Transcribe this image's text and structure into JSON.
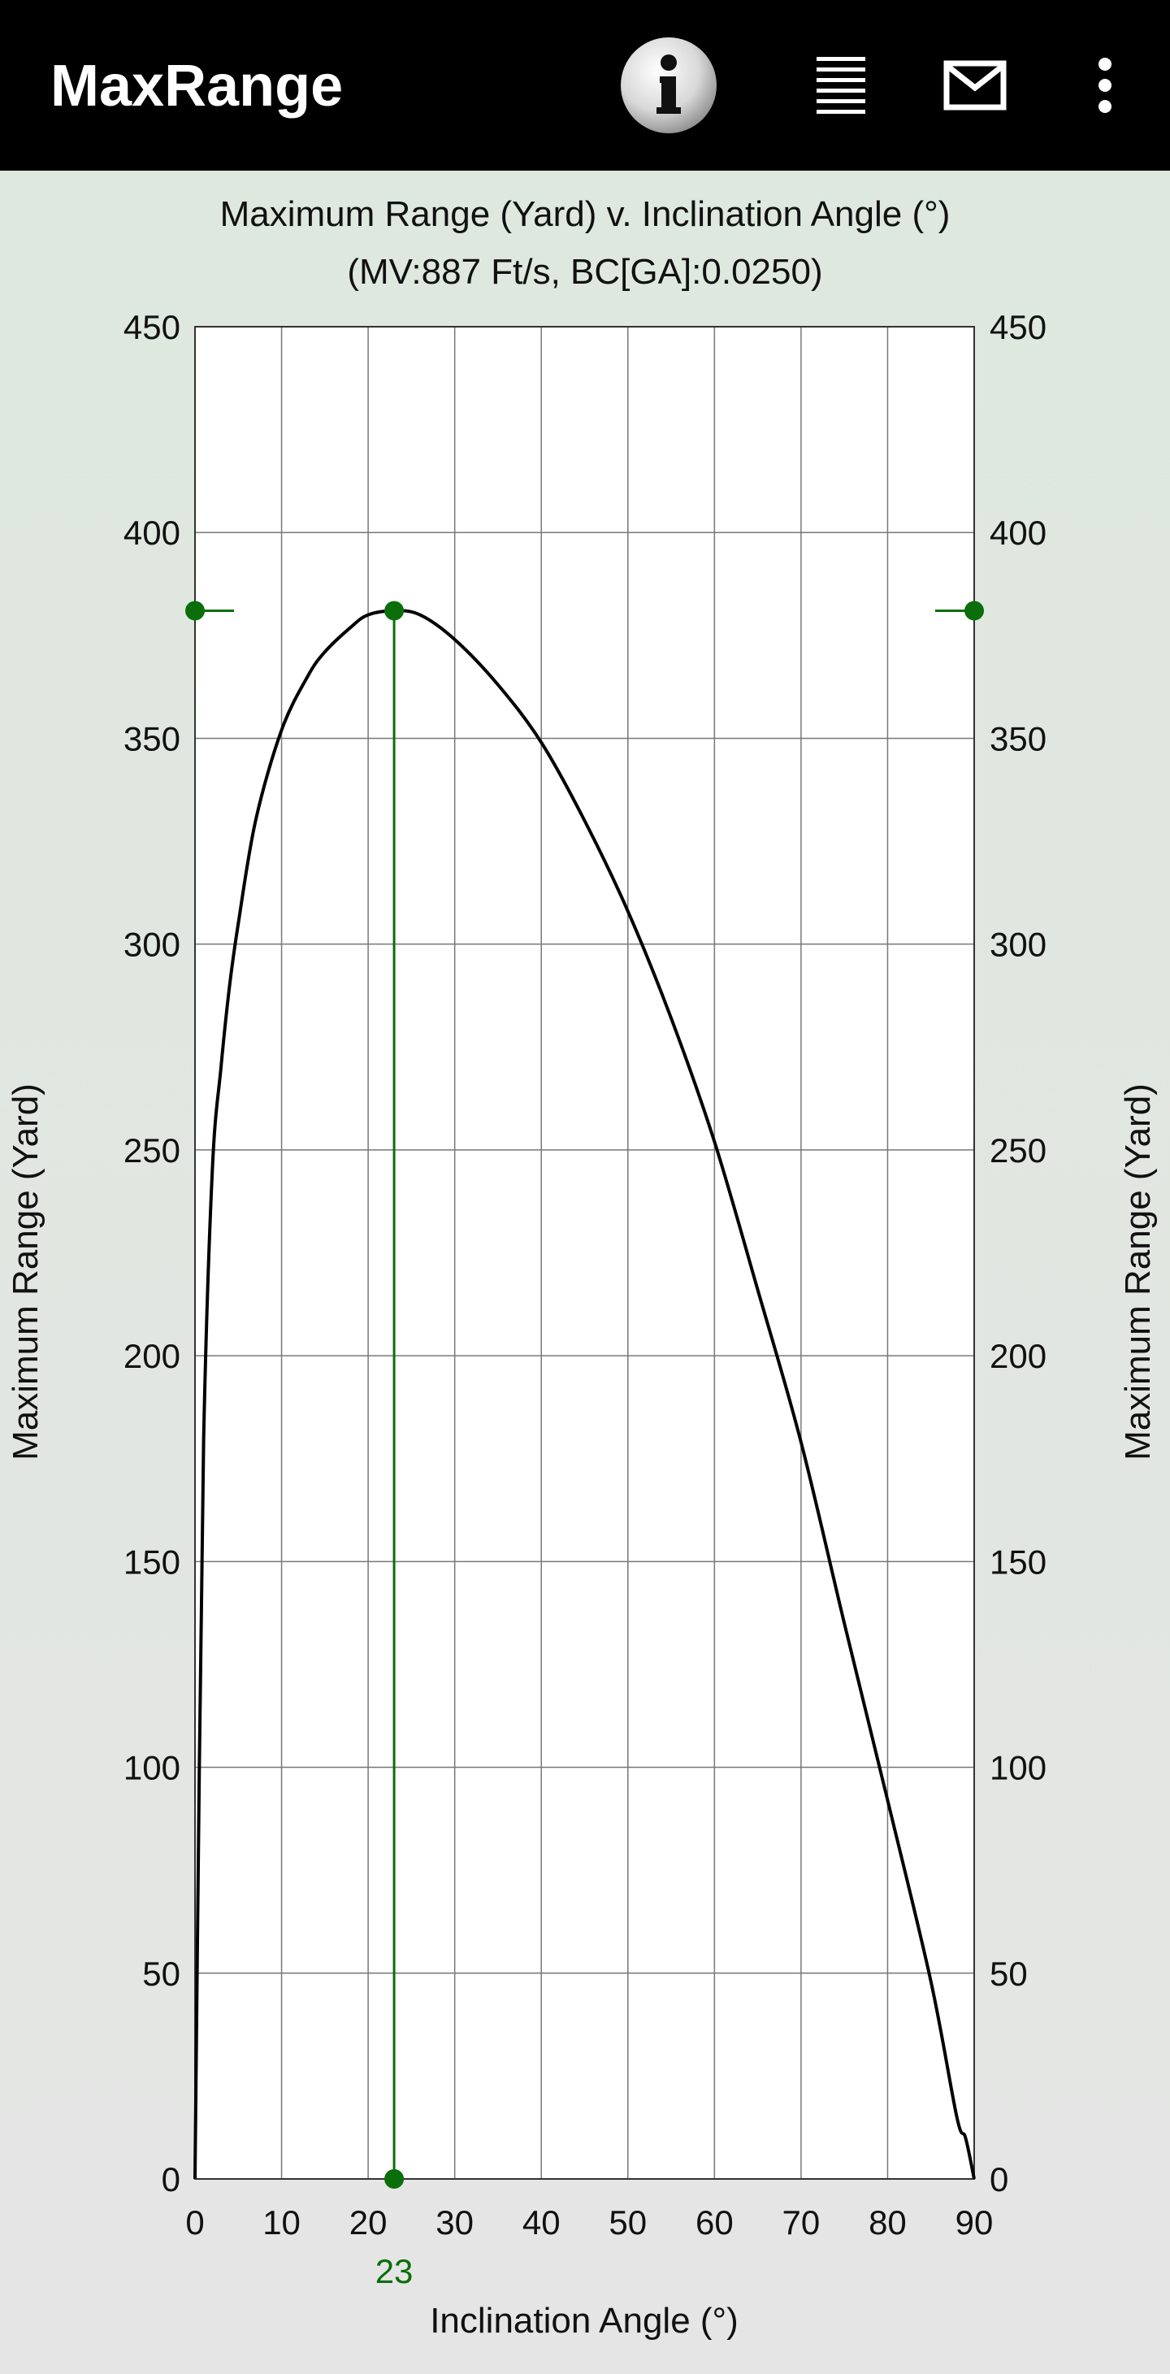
{
  "app": {
    "title": "MaxRange"
  },
  "toolbar": {
    "info_icon": "info-icon",
    "list_icon": "list-icon",
    "mail_icon": "mail-icon",
    "more_icon": "more-vert-icon"
  },
  "chart_data": {
    "type": "line",
    "title": "Maximum Range (Yard) v. Inclination Angle (°)",
    "subtitle": "(MV:887 Ft/s, BC[GA]:0.0250)",
    "xlabel": "Inclination Angle (°)",
    "ylabel": "Maximum Range (Yard)",
    "ylabel_right": "Maximum Range (Yard)",
    "xlim": [
      0,
      90
    ],
    "ylim": [
      0,
      450
    ],
    "x_ticks": [
      "0",
      "10",
      "20",
      "30",
      "40",
      "50",
      "60",
      "70",
      "80",
      "90"
    ],
    "y_ticks": [
      "0",
      "50",
      "100",
      "150",
      "200",
      "250",
      "300",
      "350",
      "400",
      "450"
    ],
    "grid": true,
    "series": [
      {
        "color": "#000000",
        "x": [
          0,
          0.5,
          1,
          2,
          3,
          4,
          5,
          7,
          10,
          13,
          15,
          18,
          20,
          23,
          26,
          30,
          35,
          40,
          45,
          50,
          55,
          60,
          65,
          70,
          75,
          80,
          85,
          88,
          89,
          90
        ],
        "y": [
          0,
          100,
          180,
          245,
          270,
          290,
          305,
          330,
          352,
          365,
          371,
          377,
          380,
          381,
          380,
          374,
          363,
          349,
          330,
          308,
          282,
          252,
          216,
          179,
          135,
          92,
          48,
          15,
          10,
          0
        ]
      }
    ],
    "marker": {
      "x": 23,
      "y": 381,
      "label": "23",
      "color": "#0a6e0a"
    }
  }
}
